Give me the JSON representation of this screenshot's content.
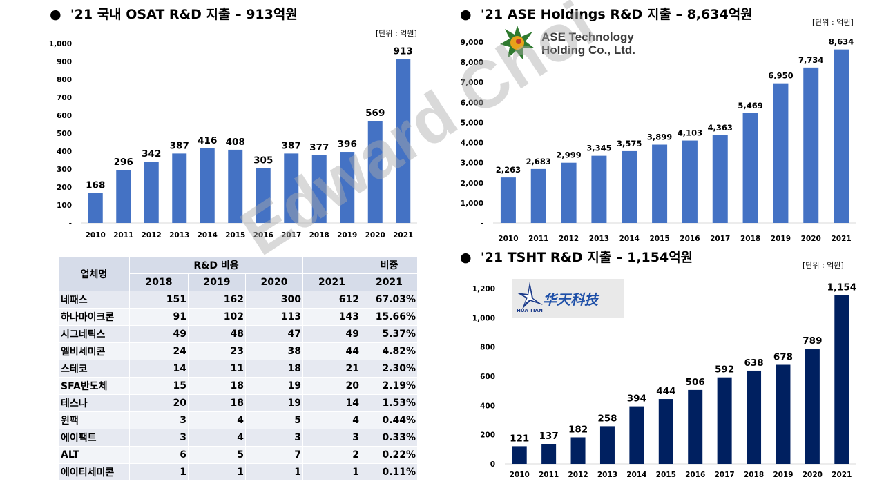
{
  "left_chart": {
    "title": "'21 국내 OSAT R&D 지출 – 913억원",
    "unit": "[단위 : 억원]"
  },
  "ase_chart": {
    "title": "'21 ASE Holdings R&D 지출 – 8,634억원",
    "unit": "[단위 : 억원]",
    "logo_line1": "ASE Technology",
    "logo_line2": "Holding Co., Ltd."
  },
  "tsht_chart": {
    "title": "'21 TSHT R&D 지출 – 1,154억원",
    "unit": "[단위 : 억원]",
    "logo_cn": "华天科技",
    "logo_en": "HUA TIAN"
  },
  "watermark": "Edward Choi",
  "table": {
    "h_company": "업체명",
    "h_rd": "R&D 비용",
    "h_share": "비중",
    "years": [
      "2018",
      "2019",
      "2020",
      "2021"
    ],
    "share_year": "2021",
    "rows": [
      {
        "name": "네패스",
        "v": [
          "151",
          "162",
          "300",
          "612"
        ],
        "share": "67.03%"
      },
      {
        "name": "하나마이크론",
        "v": [
          "91",
          "102",
          "113",
          "143"
        ],
        "share": "15.66%"
      },
      {
        "name": "시그네틱스",
        "v": [
          "49",
          "48",
          "47",
          "49"
        ],
        "share": "5.37%"
      },
      {
        "name": "엘비세미콘",
        "v": [
          "24",
          "23",
          "38",
          "44"
        ],
        "share": "4.82%"
      },
      {
        "name": "스테코",
        "v": [
          "14",
          "11",
          "18",
          "21"
        ],
        "share": "2.30%"
      },
      {
        "name": "SFA반도체",
        "v": [
          "15",
          "18",
          "19",
          "20"
        ],
        "share": "2.19%"
      },
      {
        "name": "테스나",
        "v": [
          "20",
          "18",
          "19",
          "14"
        ],
        "share": "1.53%"
      },
      {
        "name": "윈팩",
        "v": [
          "3",
          "4",
          "5",
          "4"
        ],
        "share": "0.44%"
      },
      {
        "name": "에이팩트",
        "v": [
          "3",
          "4",
          "3",
          "3"
        ],
        "share": "0.33%"
      },
      {
        "name": "ALT",
        "v": [
          "6",
          "5",
          "7",
          "2"
        ],
        "share": "0.22%"
      },
      {
        "name": "에이티세미콘",
        "v": [
          "1",
          "1",
          "1",
          "1"
        ],
        "share": "0.11%"
      }
    ]
  },
  "chart_data": [
    {
      "type": "bar",
      "title": "'21 국내 OSAT R&D 지출 – 913억원",
      "categories": [
        "2010",
        "2011",
        "2012",
        "2013",
        "2014",
        "2015",
        "2016",
        "2017",
        "2018",
        "2019",
        "2020",
        "2021"
      ],
      "values": [
        168,
        296,
        342,
        387,
        416,
        408,
        305,
        387,
        377,
        396,
        569,
        913
      ],
      "value_labels": [
        "168",
        "296",
        "342",
        "387",
        "416",
        "408",
        "305",
        "387",
        "377",
        "396",
        "569",
        "913"
      ],
      "yticks": [
        "-",
        "100",
        "200",
        "300",
        "400",
        "500",
        "600",
        "700",
        "800",
        "900",
        "1,000"
      ],
      "ylim": [
        0,
        1000
      ],
      "color": "#4472c4"
    },
    {
      "type": "bar",
      "title": "'21 ASE Holdings R&D 지출 – 8,634억원",
      "categories": [
        "2010",
        "2011",
        "2012",
        "2013",
        "2014",
        "2015",
        "2016",
        "2017",
        "2018",
        "2019",
        "2020",
        "2021"
      ],
      "values": [
        2263,
        2683,
        2999,
        3345,
        3575,
        3899,
        4103,
        4363,
        5469,
        6950,
        7734,
        8634
      ],
      "value_labels": [
        "2,263",
        "2,683",
        "2,999",
        "3,345",
        "3,575",
        "3,899",
        "4,103",
        "4,363",
        "5,469",
        "6,950",
        "7,734",
        "8,634"
      ],
      "yticks": [
        "-",
        "1,000",
        "2,000",
        "3,000",
        "4,000",
        "5,000",
        "6,000",
        "7,000",
        "8,000",
        "9,000"
      ],
      "ylim": [
        0,
        9000
      ],
      "color": "#4472c4"
    },
    {
      "type": "bar",
      "title": "'21 TSHT R&D 지출 – 1,154억원",
      "categories": [
        "2010",
        "2011",
        "2012",
        "2013",
        "2014",
        "2015",
        "2016",
        "2017",
        "2018",
        "2019",
        "2020",
        "2021"
      ],
      "values": [
        121,
        137,
        182,
        258,
        394,
        444,
        506,
        592,
        638,
        678,
        789,
        1154
      ],
      "value_labels": [
        "121",
        "137",
        "182",
        "258",
        "394",
        "444",
        "506",
        "592",
        "638",
        "678",
        "789",
        "1,154"
      ],
      "yticks": [
        "0",
        "200",
        "400",
        "600",
        "800",
        "1,000",
        "1,200"
      ],
      "ylim": [
        0,
        1200
      ],
      "color": "#002060"
    }
  ]
}
